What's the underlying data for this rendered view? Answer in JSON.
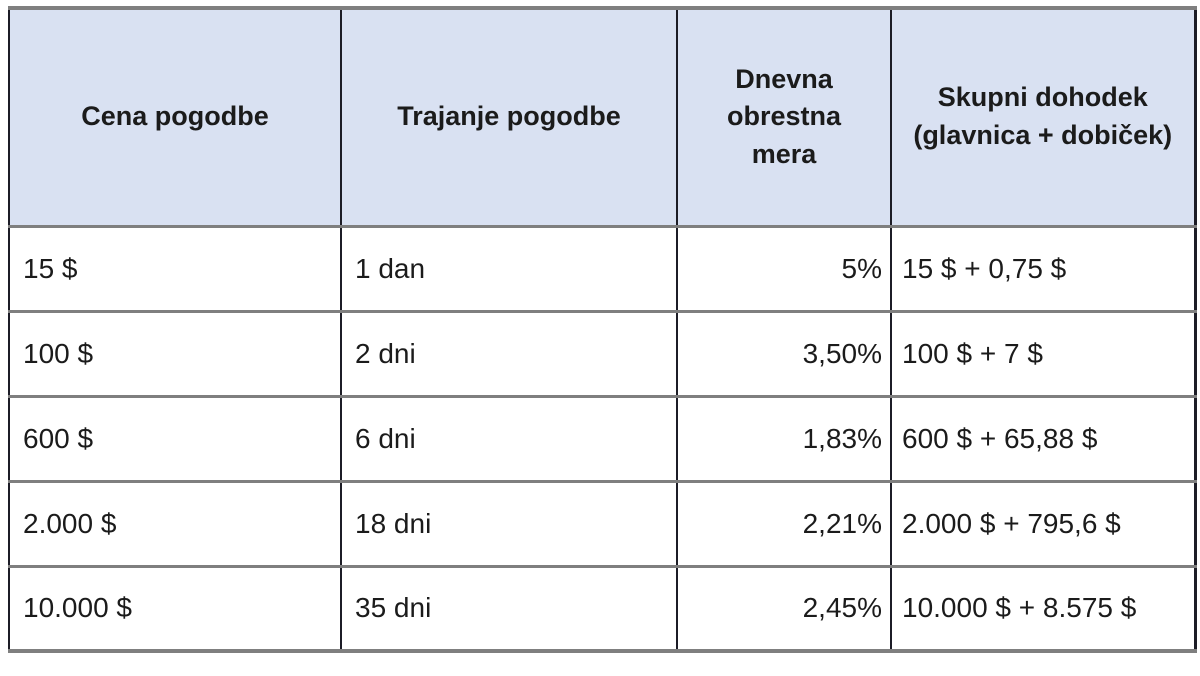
{
  "table": {
    "headers": [
      {
        "label": "Cena pogodbe"
      },
      {
        "label": "Trajanje pogodbe"
      },
      {
        "label": "Dnevna obrestna mera"
      },
      {
        "label": "Skupni dohodek (glavnica + dobiček)"
      }
    ],
    "rows": [
      [
        "15 $",
        "1 dan",
        "5%",
        "15 $ + 0,75 $"
      ],
      [
        "100 $",
        "2 dni",
        "3,50%",
        "100 $ + 7 $"
      ],
      [
        "600 $",
        "6 dni",
        "1,83%",
        "600 $ + 65,88 $"
      ],
      [
        "2.000 $",
        "18 dni",
        "2,21%",
        "2.000 $ + 795,6 $"
      ],
      [
        "10.000 $",
        "35 dni",
        "2,45%",
        "10.000 $ + 8.575 $"
      ]
    ]
  },
  "colors": {
    "header_background": "#d9e1f2",
    "horizontal_rule": "#7f7f7f",
    "vertical_rule": "#1c1c26",
    "text": "#1b1b1b",
    "cell_background": "#ffffff"
  }
}
